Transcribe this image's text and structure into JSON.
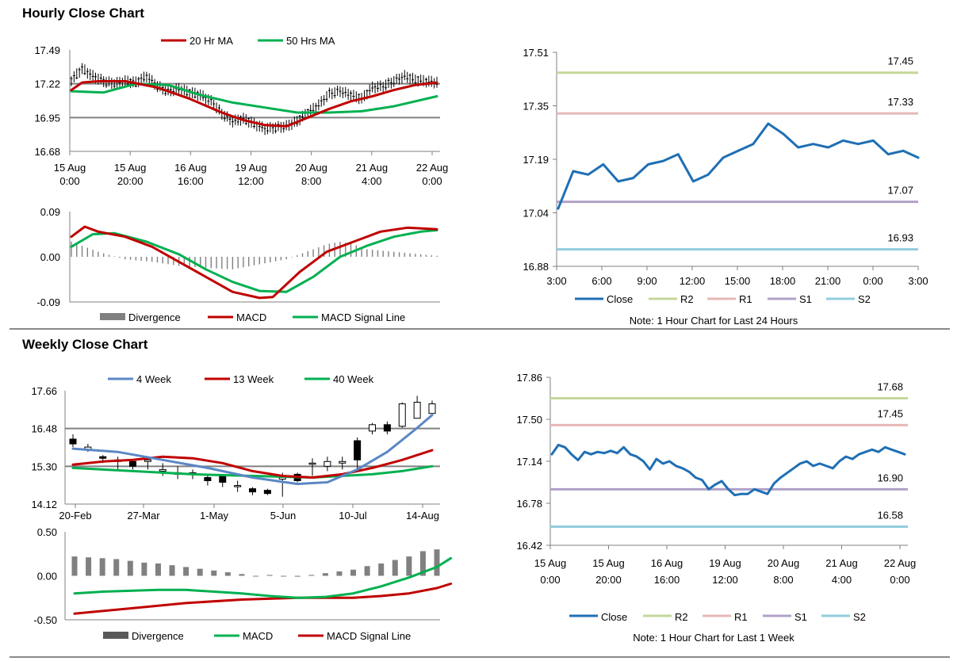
{
  "sections": {
    "hourly_title": "Hourly Close Chart",
    "weekly_title": "Weekly Close Chart"
  },
  "colors": {
    "ma20": "#c00000",
    "ma50": "#00b050",
    "close": "#1f6fb4",
    "r2": "#c4d79b",
    "r1": "#e6b8b7",
    "s1": "#b1a0c7",
    "s2": "#92cddc",
    "week4": "#5b87c5",
    "week13": "#c00000",
    "week40": "#00b050",
    "divergence": "#808080",
    "grid": "#808080"
  },
  "chart_data": [
    {
      "id": "hourly_price",
      "type": "candlestick",
      "legend": [
        "20 Hr MA",
        "50 Hrs MA"
      ],
      "y_ticks": [
        "17.49",
        "17.22",
        "16.95",
        "16.68"
      ],
      "ylim": [
        16.68,
        17.49
      ],
      "x_ticks": [
        [
          "15 Aug",
          "0:00"
        ],
        [
          "15 Aug",
          "20:00"
        ],
        [
          "16 Aug",
          "16:00"
        ],
        [
          "19 Aug",
          "12:00"
        ],
        [
          "20 Aug",
          "8:00"
        ],
        [
          "21 Aug",
          "4:00"
        ],
        [
          "22 Aug",
          "0:00"
        ]
      ],
      "close_path": [
        [
          0,
          17.25
        ],
        [
          4,
          17.34
        ],
        [
          8,
          17.28
        ],
        [
          12,
          17.24
        ],
        [
          16,
          17.22
        ],
        [
          20,
          17.24
        ],
        [
          24,
          17.23
        ],
        [
          28,
          17.28
        ],
        [
          32,
          17.2
        ],
        [
          36,
          17.16
        ],
        [
          40,
          17.18
        ],
        [
          44,
          17.15
        ],
        [
          48,
          17.13
        ],
        [
          52,
          17.08
        ],
        [
          56,
          16.98
        ],
        [
          60,
          16.92
        ],
        [
          64,
          16.94
        ],
        [
          68,
          16.9
        ],
        [
          72,
          16.86
        ],
        [
          76,
          16.87
        ],
        [
          80,
          16.88
        ],
        [
          84,
          16.92
        ],
        [
          88,
          16.99
        ],
        [
          92,
          17.05
        ],
        [
          96,
          17.14
        ],
        [
          100,
          17.16
        ],
        [
          104,
          17.13
        ],
        [
          108,
          17.1
        ],
        [
          112,
          17.19
        ],
        [
          116,
          17.2
        ],
        [
          120,
          17.24
        ],
        [
          124,
          17.28
        ],
        [
          128,
          17.25
        ],
        [
          132,
          17.24
        ],
        [
          136,
          17.23
        ]
      ],
      "ma20": [
        [
          0,
          17.17
        ],
        [
          4,
          17.23
        ],
        [
          10,
          17.24
        ],
        [
          20,
          17.24
        ],
        [
          32,
          17.19
        ],
        [
          44,
          17.1
        ],
        [
          56,
          16.99
        ],
        [
          64,
          16.93
        ],
        [
          72,
          16.89
        ],
        [
          80,
          16.88
        ],
        [
          88,
          16.95
        ],
        [
          96,
          17.02
        ],
        [
          104,
          17.08
        ],
        [
          112,
          17.12
        ],
        [
          120,
          17.17
        ],
        [
          128,
          17.21
        ],
        [
          136,
          17.23
        ]
      ],
      "ma50": [
        [
          0,
          17.16
        ],
        [
          12,
          17.15
        ],
        [
          24,
          17.22
        ],
        [
          36,
          17.21
        ],
        [
          48,
          17.13
        ],
        [
          60,
          17.07
        ],
        [
          72,
          17.03
        ],
        [
          84,
          16.99
        ],
        [
          96,
          16.99
        ],
        [
          108,
          17.0
        ],
        [
          120,
          17.04
        ],
        [
          136,
          17.12
        ]
      ]
    },
    {
      "id": "hourly_macd",
      "type": "line",
      "legend": [
        "Divergence",
        "MACD",
        "MACD Signal Line"
      ],
      "y_ticks": [
        "0.09",
        "0.00",
        "-0.09"
      ],
      "ylim": [
        -0.09,
        0.09
      ],
      "macd": [
        [
          0,
          0.04
        ],
        [
          5,
          0.06
        ],
        [
          10,
          0.05
        ],
        [
          20,
          0.04
        ],
        [
          30,
          0.02
        ],
        [
          40,
          -0.01
        ],
        [
          50,
          -0.04
        ],
        [
          60,
          -0.07
        ],
        [
          70,
          -0.082
        ],
        [
          75,
          -0.08
        ],
        [
          85,
          -0.03
        ],
        [
          95,
          0.01
        ],
        [
          105,
          0.03
        ],
        [
          115,
          0.05
        ],
        [
          125,
          0.058
        ],
        [
          136,
          0.055
        ]
      ],
      "signal": [
        [
          0,
          0.02
        ],
        [
          8,
          0.045
        ],
        [
          16,
          0.047
        ],
        [
          28,
          0.03
        ],
        [
          40,
          0.005
        ],
        [
          50,
          -0.025
        ],
        [
          60,
          -0.05
        ],
        [
          70,
          -0.068
        ],
        [
          80,
          -0.07
        ],
        [
          90,
          -0.04
        ],
        [
          100,
          0.0
        ],
        [
          110,
          0.022
        ],
        [
          120,
          0.04
        ],
        [
          130,
          0.05
        ],
        [
          136,
          0.053
        ]
      ],
      "divergence": [
        [
          0,
          0.03
        ],
        [
          10,
          0.01
        ],
        [
          20,
          -0.005
        ],
        [
          30,
          -0.01
        ],
        [
          40,
          -0.018
        ],
        [
          50,
          -0.022
        ],
        [
          60,
          -0.025
        ],
        [
          70,
          -0.015
        ],
        [
          80,
          -0.005
        ],
        [
          90,
          0.015
        ],
        [
          95,
          0.025
        ],
        [
          100,
          0.03
        ],
        [
          105,
          0.025
        ],
        [
          110,
          0.015
        ],
        [
          120,
          0.01
        ],
        [
          130,
          0.005
        ],
        [
          136,
          0.002
        ]
      ]
    },
    {
      "id": "hourly_24h",
      "type": "line",
      "y_ticks": [
        "17.51",
        "17.35",
        "17.19",
        "17.04",
        "16.88"
      ],
      "ylim": [
        16.88,
        17.51
      ],
      "x_ticks": [
        "3:00",
        "6:00",
        "9:00",
        "12:00",
        "15:00",
        "18:00",
        "21:00",
        "0:00",
        "3:00"
      ],
      "levels": [
        {
          "name": "R2",
          "value": 17.45,
          "label": "17.45"
        },
        {
          "name": "R1",
          "value": 17.33,
          "label": "17.33"
        },
        {
          "name": "S1",
          "value": 17.07,
          "label": "17.07"
        },
        {
          "name": "S2",
          "value": 16.93,
          "label": "16.93"
        }
      ],
      "legend": [
        "Close",
        "R2",
        "R1",
        "S1",
        "S2"
      ],
      "note": "Note: 1 Hour Chart for Last 24 Hours",
      "close": [
        17.05,
        17.16,
        17.15,
        17.18,
        17.13,
        17.14,
        17.18,
        17.19,
        17.21,
        17.13,
        17.15,
        17.2,
        17.22,
        17.24,
        17.3,
        17.27,
        17.23,
        17.24,
        17.23,
        17.25,
        17.24,
        17.25,
        17.21,
        17.22,
        17.2
      ]
    },
    {
      "id": "weekly_price",
      "type": "candlestick",
      "legend": [
        "4 Week",
        "13 Week",
        "40 Week"
      ],
      "y_ticks": [
        "17.66",
        "16.48",
        "15.30",
        "14.12"
      ],
      "ylim": [
        14.12,
        17.66
      ],
      "x_ticks": [
        "20-Feb",
        "27-Mar",
        "1-May",
        "5-Jun",
        "10-Jul",
        "14-Aug"
      ],
      "candles": [
        [
          16.15,
          16.0,
          16.3,
          15.9
        ],
        [
          15.8,
          15.9,
          16.0,
          15.75
        ],
        [
          15.6,
          15.55,
          15.65,
          15.4
        ],
        [
          15.5,
          15.45,
          15.6,
          15.2
        ],
        [
          15.45,
          15.3,
          15.5,
          15.2
        ],
        [
          15.45,
          15.5,
          15.6,
          15.2
        ],
        [
          15.15,
          15.2,
          15.4,
          15.0
        ],
        [
          15.1,
          15.05,
          15.3,
          14.9
        ],
        [
          15.05,
          15.1,
          15.2,
          14.9
        ],
        [
          14.95,
          14.85,
          15.05,
          14.7
        ],
        [
          15.0,
          14.8,
          15.05,
          14.65
        ],
        [
          14.7,
          14.7,
          14.85,
          14.5
        ],
        [
          14.6,
          14.5,
          14.65,
          14.4
        ],
        [
          14.55,
          14.45,
          14.6,
          14.4
        ],
        [
          14.9,
          14.95,
          15.1,
          14.35
        ],
        [
          15.05,
          14.85,
          15.1,
          14.8
        ],
        [
          15.4,
          15.4,
          15.55,
          15.0
        ],
        [
          15.3,
          15.45,
          15.6,
          15.15
        ],
        [
          15.4,
          15.45,
          15.6,
          15.2
        ],
        [
          16.1,
          15.5,
          16.2,
          15.2
        ],
        [
          16.4,
          16.6,
          16.65,
          16.3
        ],
        [
          16.6,
          16.4,
          16.7,
          16.3
        ],
        [
          16.55,
          17.25,
          17.3,
          16.5
        ],
        [
          16.8,
          17.3,
          17.5,
          16.8
        ],
        [
          16.95,
          17.25,
          17.35,
          16.95
        ]
      ],
      "ma4": [
        [
          0,
          15.85
        ],
        [
          3,
          15.75
        ],
        [
          6,
          15.5
        ],
        [
          9,
          15.25
        ],
        [
          12,
          14.95
        ],
        [
          15,
          14.75
        ],
        [
          17,
          14.8
        ],
        [
          19,
          15.2
        ],
        [
          21,
          15.75
        ],
        [
          23,
          16.5
        ],
        [
          24,
          16.9
        ]
      ],
      "ma13": [
        [
          0,
          15.35
        ],
        [
          2,
          15.45
        ],
        [
          4,
          15.5
        ],
        [
          6,
          15.6
        ],
        [
          8,
          15.55
        ],
        [
          10,
          15.4
        ],
        [
          12,
          15.15
        ],
        [
          14,
          15.0
        ],
        [
          16,
          14.95
        ],
        [
          18,
          15.05
        ],
        [
          20,
          15.25
        ],
        [
          22,
          15.5
        ],
        [
          24,
          15.8
        ]
      ],
      "ma40": [
        [
          0,
          15.25
        ],
        [
          4,
          15.15
        ],
        [
          8,
          15.05
        ],
        [
          12,
          15.0
        ],
        [
          16,
          14.95
        ],
        [
          20,
          15.05
        ],
        [
          22,
          15.15
        ],
        [
          24,
          15.3
        ]
      ]
    },
    {
      "id": "weekly_macd",
      "type": "line",
      "legend": [
        "Divergence",
        "MACD",
        "MACD Signal Line"
      ],
      "y_ticks": [
        "0.50",
        "0.00",
        "-0.50"
      ],
      "ylim": [
        -0.5,
        0.5
      ],
      "divergence": [
        0.22,
        0.21,
        0.2,
        0.19,
        0.17,
        0.15,
        0.14,
        0.12,
        0.1,
        0.08,
        0.06,
        0.04,
        0.02,
        0.0,
        0.01,
        0.0,
        -0.01,
        0.01,
        0.03,
        0.05,
        0.07,
        0.11,
        0.14,
        0.18,
        0.22,
        0.28,
        0.3
      ],
      "macd": [
        [
          0,
          -0.2
        ],
        [
          2,
          -0.18
        ],
        [
          4,
          -0.17
        ],
        [
          6,
          -0.16
        ],
        [
          8,
          -0.16
        ],
        [
          10,
          -0.18
        ],
        [
          12,
          -0.2
        ],
        [
          14,
          -0.23
        ],
        [
          16,
          -0.25
        ],
        [
          18,
          -0.24
        ],
        [
          20,
          -0.2
        ],
        [
          22,
          -0.12
        ],
        [
          24,
          -0.02
        ],
        [
          26,
          0.1
        ],
        [
          27,
          0.2
        ]
      ],
      "signal": [
        [
          0,
          -0.43
        ],
        [
          4,
          -0.37
        ],
        [
          8,
          -0.31
        ],
        [
          12,
          -0.27
        ],
        [
          16,
          -0.25
        ],
        [
          20,
          -0.25
        ],
        [
          22,
          -0.23
        ],
        [
          24,
          -0.2
        ],
        [
          26,
          -0.14
        ],
        [
          27,
          -0.09
        ]
      ]
    },
    {
      "id": "weekly_1w",
      "type": "line",
      "y_ticks": [
        "17.86",
        "17.50",
        "17.14",
        "16.78",
        "16.42"
      ],
      "ylim": [
        16.42,
        17.86
      ],
      "x_ticks": [
        [
          "15 Aug",
          "0:00"
        ],
        [
          "15 Aug",
          "20:00"
        ],
        [
          "16 Aug",
          "16:00"
        ],
        [
          "19 Aug",
          "12:00"
        ],
        [
          "20 Aug",
          "8:00"
        ],
        [
          "21 Aug",
          "4:00"
        ],
        [
          "22 Aug",
          "0:00"
        ]
      ],
      "levels": [
        {
          "name": "R2",
          "value": 17.68,
          "label": "17.68"
        },
        {
          "name": "R1",
          "value": 17.45,
          "label": "17.45"
        },
        {
          "name": "S1",
          "value": 16.9,
          "label": "16.90"
        },
        {
          "name": "S2",
          "value": 16.58,
          "label": "16.58"
        }
      ],
      "legend": [
        "Close",
        "R2",
        "R1",
        "S1",
        "S2"
      ],
      "note": "Note: 1 Hour Chart for Last 1 Week",
      "close": [
        [
          0,
          17.2
        ],
        [
          2,
          17.28
        ],
        [
          4,
          17.26
        ],
        [
          6,
          17.2
        ],
        [
          8,
          17.15
        ],
        [
          10,
          17.22
        ],
        [
          12,
          17.2
        ],
        [
          14,
          17.22
        ],
        [
          16,
          17.21
        ],
        [
          18,
          17.23
        ],
        [
          20,
          17.21
        ],
        [
          22,
          17.26
        ],
        [
          24,
          17.2
        ],
        [
          26,
          17.18
        ],
        [
          28,
          17.14
        ],
        [
          30,
          17.07
        ],
        [
          32,
          17.16
        ],
        [
          34,
          17.12
        ],
        [
          36,
          17.14
        ],
        [
          38,
          17.1
        ],
        [
          40,
          17.08
        ],
        [
          42,
          17.05
        ],
        [
          44,
          17.0
        ],
        [
          46,
          16.98
        ],
        [
          48,
          16.9
        ],
        [
          50,
          16.94
        ],
        [
          52,
          16.97
        ],
        [
          54,
          16.9
        ],
        [
          56,
          16.85
        ],
        [
          58,
          16.86
        ],
        [
          60,
          16.86
        ],
        [
          62,
          16.9
        ],
        [
          64,
          16.88
        ],
        [
          66,
          16.86
        ],
        [
          68,
          16.95
        ],
        [
          70,
          17.0
        ],
        [
          72,
          17.04
        ],
        [
          74,
          17.08
        ],
        [
          76,
          17.12
        ],
        [
          78,
          17.14
        ],
        [
          80,
          17.1
        ],
        [
          82,
          17.12
        ],
        [
          84,
          17.1
        ],
        [
          86,
          17.08
        ],
        [
          88,
          17.14
        ],
        [
          90,
          17.18
        ],
        [
          92,
          17.16
        ],
        [
          94,
          17.2
        ],
        [
          96,
          17.22
        ],
        [
          98,
          17.24
        ],
        [
          100,
          17.22
        ],
        [
          102,
          17.26
        ],
        [
          104,
          17.24
        ],
        [
          106,
          17.22
        ],
        [
          108,
          17.2
        ]
      ]
    }
  ]
}
